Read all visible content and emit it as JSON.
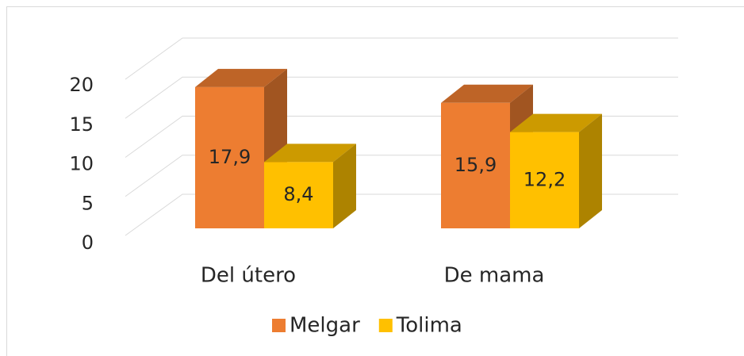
{
  "chart_data": {
    "type": "bar3d",
    "categories": [
      "Del útero",
      "De mama"
    ],
    "series": [
      {
        "name": "Melgar",
        "color": "#ED7D31",
        "values": [
          17.9,
          15.9
        ],
        "value_labels": [
          "17,9",
          "15,9"
        ]
      },
      {
        "name": "Tolima",
        "color": "#FFC000",
        "values": [
          8.4,
          12.2
        ],
        "value_labels": [
          "8,4",
          "12,2"
        ]
      }
    ],
    "ylim": [
      0,
      20
    ],
    "yticks": [
      0,
      5,
      10,
      15,
      20
    ],
    "grid": true,
    "legend": "bottom"
  }
}
